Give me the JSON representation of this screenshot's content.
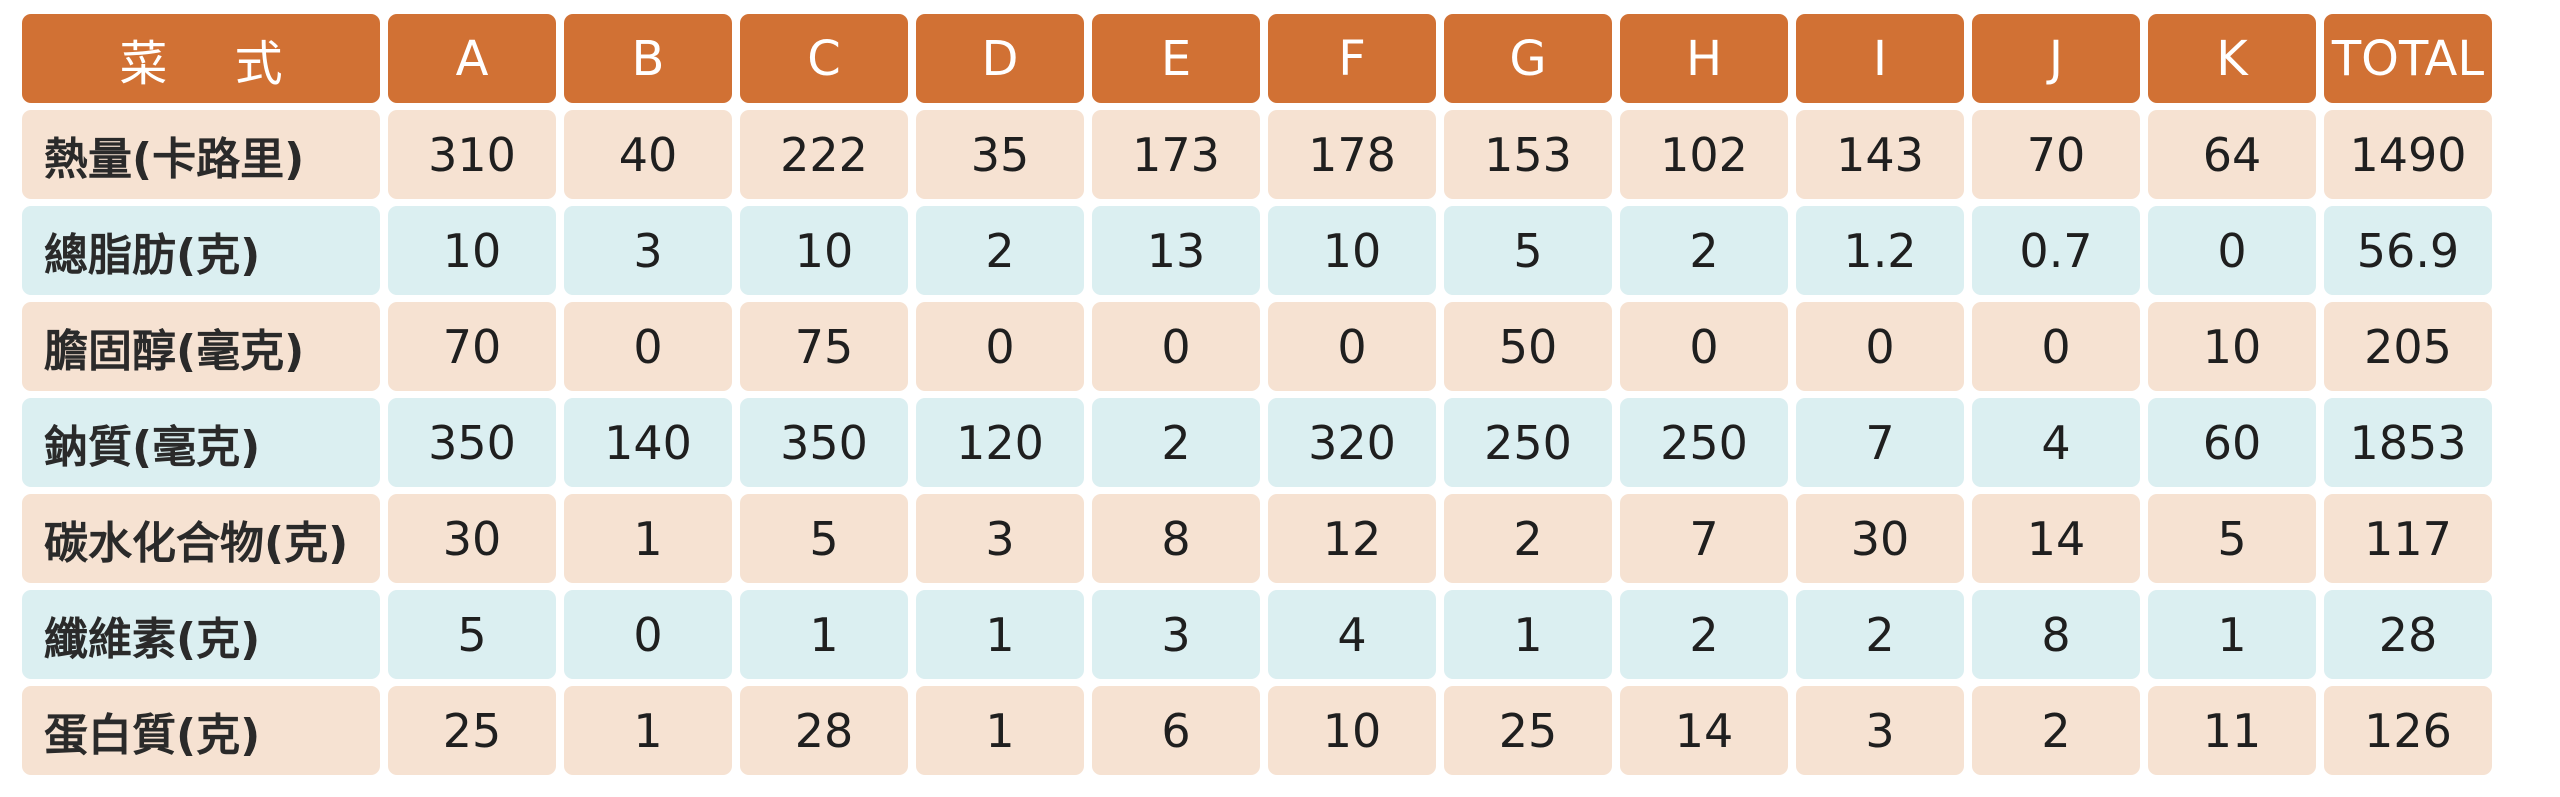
{
  "header": {
    "label": "菜 式",
    "columns": [
      "A",
      "B",
      "C",
      "D",
      "E",
      "F",
      "G",
      "H",
      "I",
      "J",
      "K",
      "TOTAL"
    ]
  },
  "rows": [
    {
      "label": "熱量(卡路里)",
      "values": [
        "310",
        "40",
        "222",
        "35",
        "173",
        "178",
        "153",
        "102",
        "143",
        "70",
        "64",
        "1490"
      ]
    },
    {
      "label": "總脂肪(克)",
      "values": [
        "10",
        "3",
        "10",
        "2",
        "13",
        "10",
        "5",
        "2",
        "1.2",
        "0.7",
        "0",
        "56.9"
      ]
    },
    {
      "label": "膽固醇(毫克)",
      "values": [
        "70",
        "0",
        "75",
        "0",
        "0",
        "0",
        "50",
        "0",
        "0",
        "0",
        "10",
        "205"
      ]
    },
    {
      "label": "鈉質(毫克)",
      "values": [
        "350",
        "140",
        "350",
        "120",
        "2",
        "320",
        "250",
        "250",
        "7",
        "4",
        "60",
        "1853"
      ]
    },
    {
      "label": "碳水化合物(克)",
      "values": [
        "30",
        "1",
        "5",
        "3",
        "8",
        "12",
        "2",
        "7",
        "30",
        "14",
        "5",
        "117"
      ]
    },
    {
      "label": "纖維素(克)",
      "values": [
        "5",
        "0",
        "1",
        "1",
        "3",
        "4",
        "1",
        "2",
        "2",
        "8",
        "1",
        "28"
      ]
    },
    {
      "label": "蛋白質(克)",
      "values": [
        "25",
        "1",
        "28",
        "1",
        "6",
        "10",
        "25",
        "14",
        "3",
        "2",
        "11",
        "126"
      ]
    }
  ],
  "colors": {
    "header": "#d17134",
    "row_peach": "#f6e2d2",
    "row_blue": "#dbeff1"
  }
}
